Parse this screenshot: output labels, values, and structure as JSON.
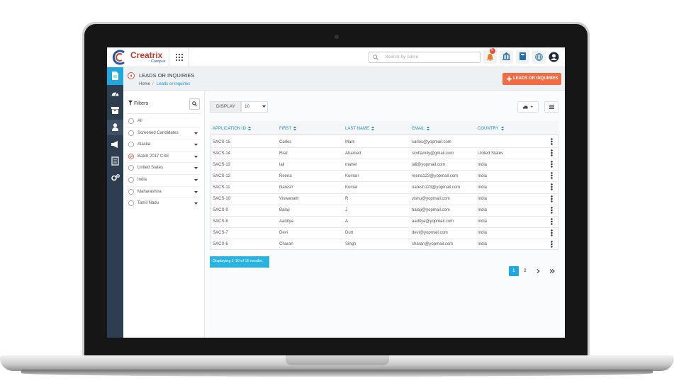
{
  "header": {
    "brand": "Creatrix",
    "brand_sub": "Campus",
    "search_placeholder": "Search by name",
    "notification_count": "5"
  },
  "page": {
    "title": "LEADS OR INQUIRIES",
    "breadcrumb": {
      "home": "Home",
      "separator": "/",
      "current": "Leads or inquiries"
    },
    "add_button": "LEADS OR INQUIRIES"
  },
  "filters": {
    "title": "Filters",
    "items": [
      {
        "label": "All",
        "checked": false,
        "expandable": false
      },
      {
        "label": "Screened Candidates",
        "checked": false,
        "expandable": true
      },
      {
        "label": "Alaska",
        "checked": false,
        "expandable": true
      },
      {
        "label": "Batch 2017 CSE",
        "checked": true,
        "expandable": true
      },
      {
        "label": "United States",
        "checked": false,
        "expandable": true
      },
      {
        "label": "India",
        "checked": false,
        "expandable": true
      },
      {
        "label": "Maharashtra",
        "checked": false,
        "expandable": true
      },
      {
        "label": "Tamil Nadu",
        "checked": false,
        "expandable": true
      }
    ]
  },
  "table": {
    "display_label": "DISPLAY",
    "page_size": "10",
    "columns": [
      "APPLICATION ID",
      "FIRST",
      "LAST NAME",
      "EMAIL",
      "COUNTRY"
    ],
    "rows": [
      [
        "SACS-15",
        "Carlos",
        "Mark",
        "carlos@yopmail.com",
        null
      ],
      [
        "SACS-14",
        "Riaz",
        "Ahamed",
        "scvlfamily@gmail.com",
        "United States"
      ],
      [
        "SACS-13",
        "lali",
        "mahel",
        "lali@yopmail.com",
        "India"
      ],
      [
        "SACS-12",
        "Reena",
        "Kumari",
        "reena123@yopmail.com",
        "India"
      ],
      [
        "SACS-11",
        "Naresh",
        "Kumar",
        "naresh123@yopmail.com",
        "India"
      ],
      [
        "SACS-10",
        "Viswanath",
        "R",
        "vishu@yopmail.com",
        "India"
      ],
      [
        "SACS-9",
        "Balaji",
        "J",
        "balaji@yopmail.com",
        "India"
      ],
      [
        "SACS-8",
        "Aaditya",
        "A",
        "aaditya@yopmail.com",
        "India"
      ],
      [
        "SACS-7",
        "Devi",
        "Dutt",
        "devi@yopmail.com",
        "India"
      ],
      [
        "SACS-6",
        "Charan",
        "Singh",
        "charan@yopmail.com",
        "India"
      ]
    ]
  },
  "summary": "Displaying 1-10 of 15 results.",
  "pagination": {
    "pages": [
      {
        "label": "1",
        "active": true
      },
      {
        "label": "2",
        "active": false
      }
    ]
  }
}
